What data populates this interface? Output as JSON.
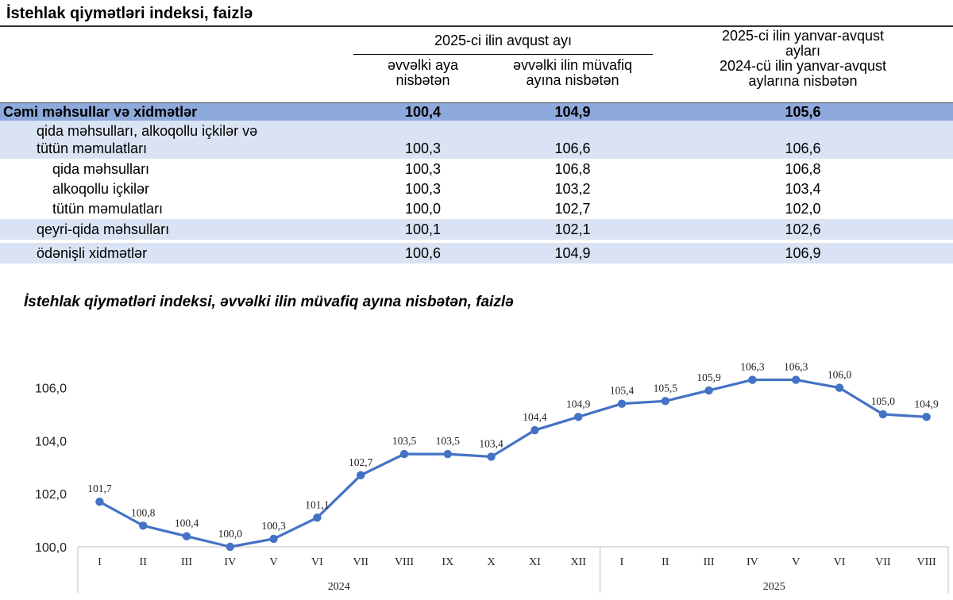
{
  "table": {
    "title": "İstehlak qiymətləri indeksi, faizlə",
    "group_header": "2025-ci ilin avqust ayı",
    "col1_header": [
      "əvvəlki aya",
      "nisbətən"
    ],
    "col2_header": [
      "əvvəlki ilin müvafiq",
      "ayına nisbətən"
    ],
    "col3_header": [
      "2025-ci ilin yanvar-avqust",
      "ayları",
      "2024-cü ilin yanvar-avqust",
      "aylarına nisbətən"
    ],
    "rows": [
      {
        "label": "Cəmi məhsullar və xidmətlər",
        "v1": "100,4",
        "v2": "104,9",
        "v3": "105,6"
      },
      {
        "label": "qida məhsulları, alkoqollu içkilər və",
        "label2": "tütün məmulatları",
        "v1": "100,3",
        "v2": "106,6",
        "v3": "106,6"
      },
      {
        "label": "qida məhsulları",
        "v1": "100,3",
        "v2": "106,8",
        "v3": "106,8"
      },
      {
        "label": "alkoqollu içkilər",
        "v1": "100,3",
        "v2": "103,2",
        "v3": "103,4"
      },
      {
        "label": "tütün məmulatları",
        "v1": "100,0",
        "v2": "102,7",
        "v3": "102,0"
      },
      {
        "label": "qeyri-qida məhsulları",
        "v1": "100,1",
        "v2": "102,1",
        "v3": "102,6"
      },
      {
        "label": "ödənişli xidmətlər",
        "v1": "100,6",
        "v2": "104,9",
        "v3": "106,9"
      }
    ]
  },
  "chart_data": {
    "type": "line",
    "title": "İstehlak qiymətləri indeksi, əvvəlki ilin müvafiq ayına nisbətən, faizlə",
    "categories": [
      "I",
      "II",
      "III",
      "IV",
      "V",
      "VI",
      "VII",
      "VIII",
      "IX",
      "X",
      "XI",
      "XII",
      "I",
      "II",
      "III",
      "IV",
      "V",
      "VI",
      "VII",
      "VIII"
    ],
    "values": [
      101.7,
      100.8,
      100.4,
      100.0,
      100.3,
      101.1,
      102.7,
      103.5,
      103.5,
      103.4,
      104.4,
      104.9,
      105.4,
      105.5,
      105.9,
      106.3,
      106.3,
      106.0,
      105.0,
      104.9
    ],
    "value_labels": [
      "101,7",
      "100,8",
      "100,4",
      "100,0",
      "100,3",
      "101,1",
      "102,7",
      "103,5",
      "103,5",
      "103,4",
      "104,4",
      "104,9",
      "105,4",
      "105,5",
      "105,9",
      "106,3",
      "106,3",
      "106,0",
      "105,0",
      "104,9"
    ],
    "groups": [
      {
        "label": "2024",
        "count": 12
      },
      {
        "label": "2025",
        "count": 8
      }
    ],
    "yticks": [
      100,
      102,
      104,
      106
    ],
    "ytick_labels": [
      "100,0",
      "102,0",
      "104,0",
      "106,0"
    ],
    "ylim": [
      100,
      106.5
    ],
    "line_color": "#4472c4",
    "grid": false
  }
}
